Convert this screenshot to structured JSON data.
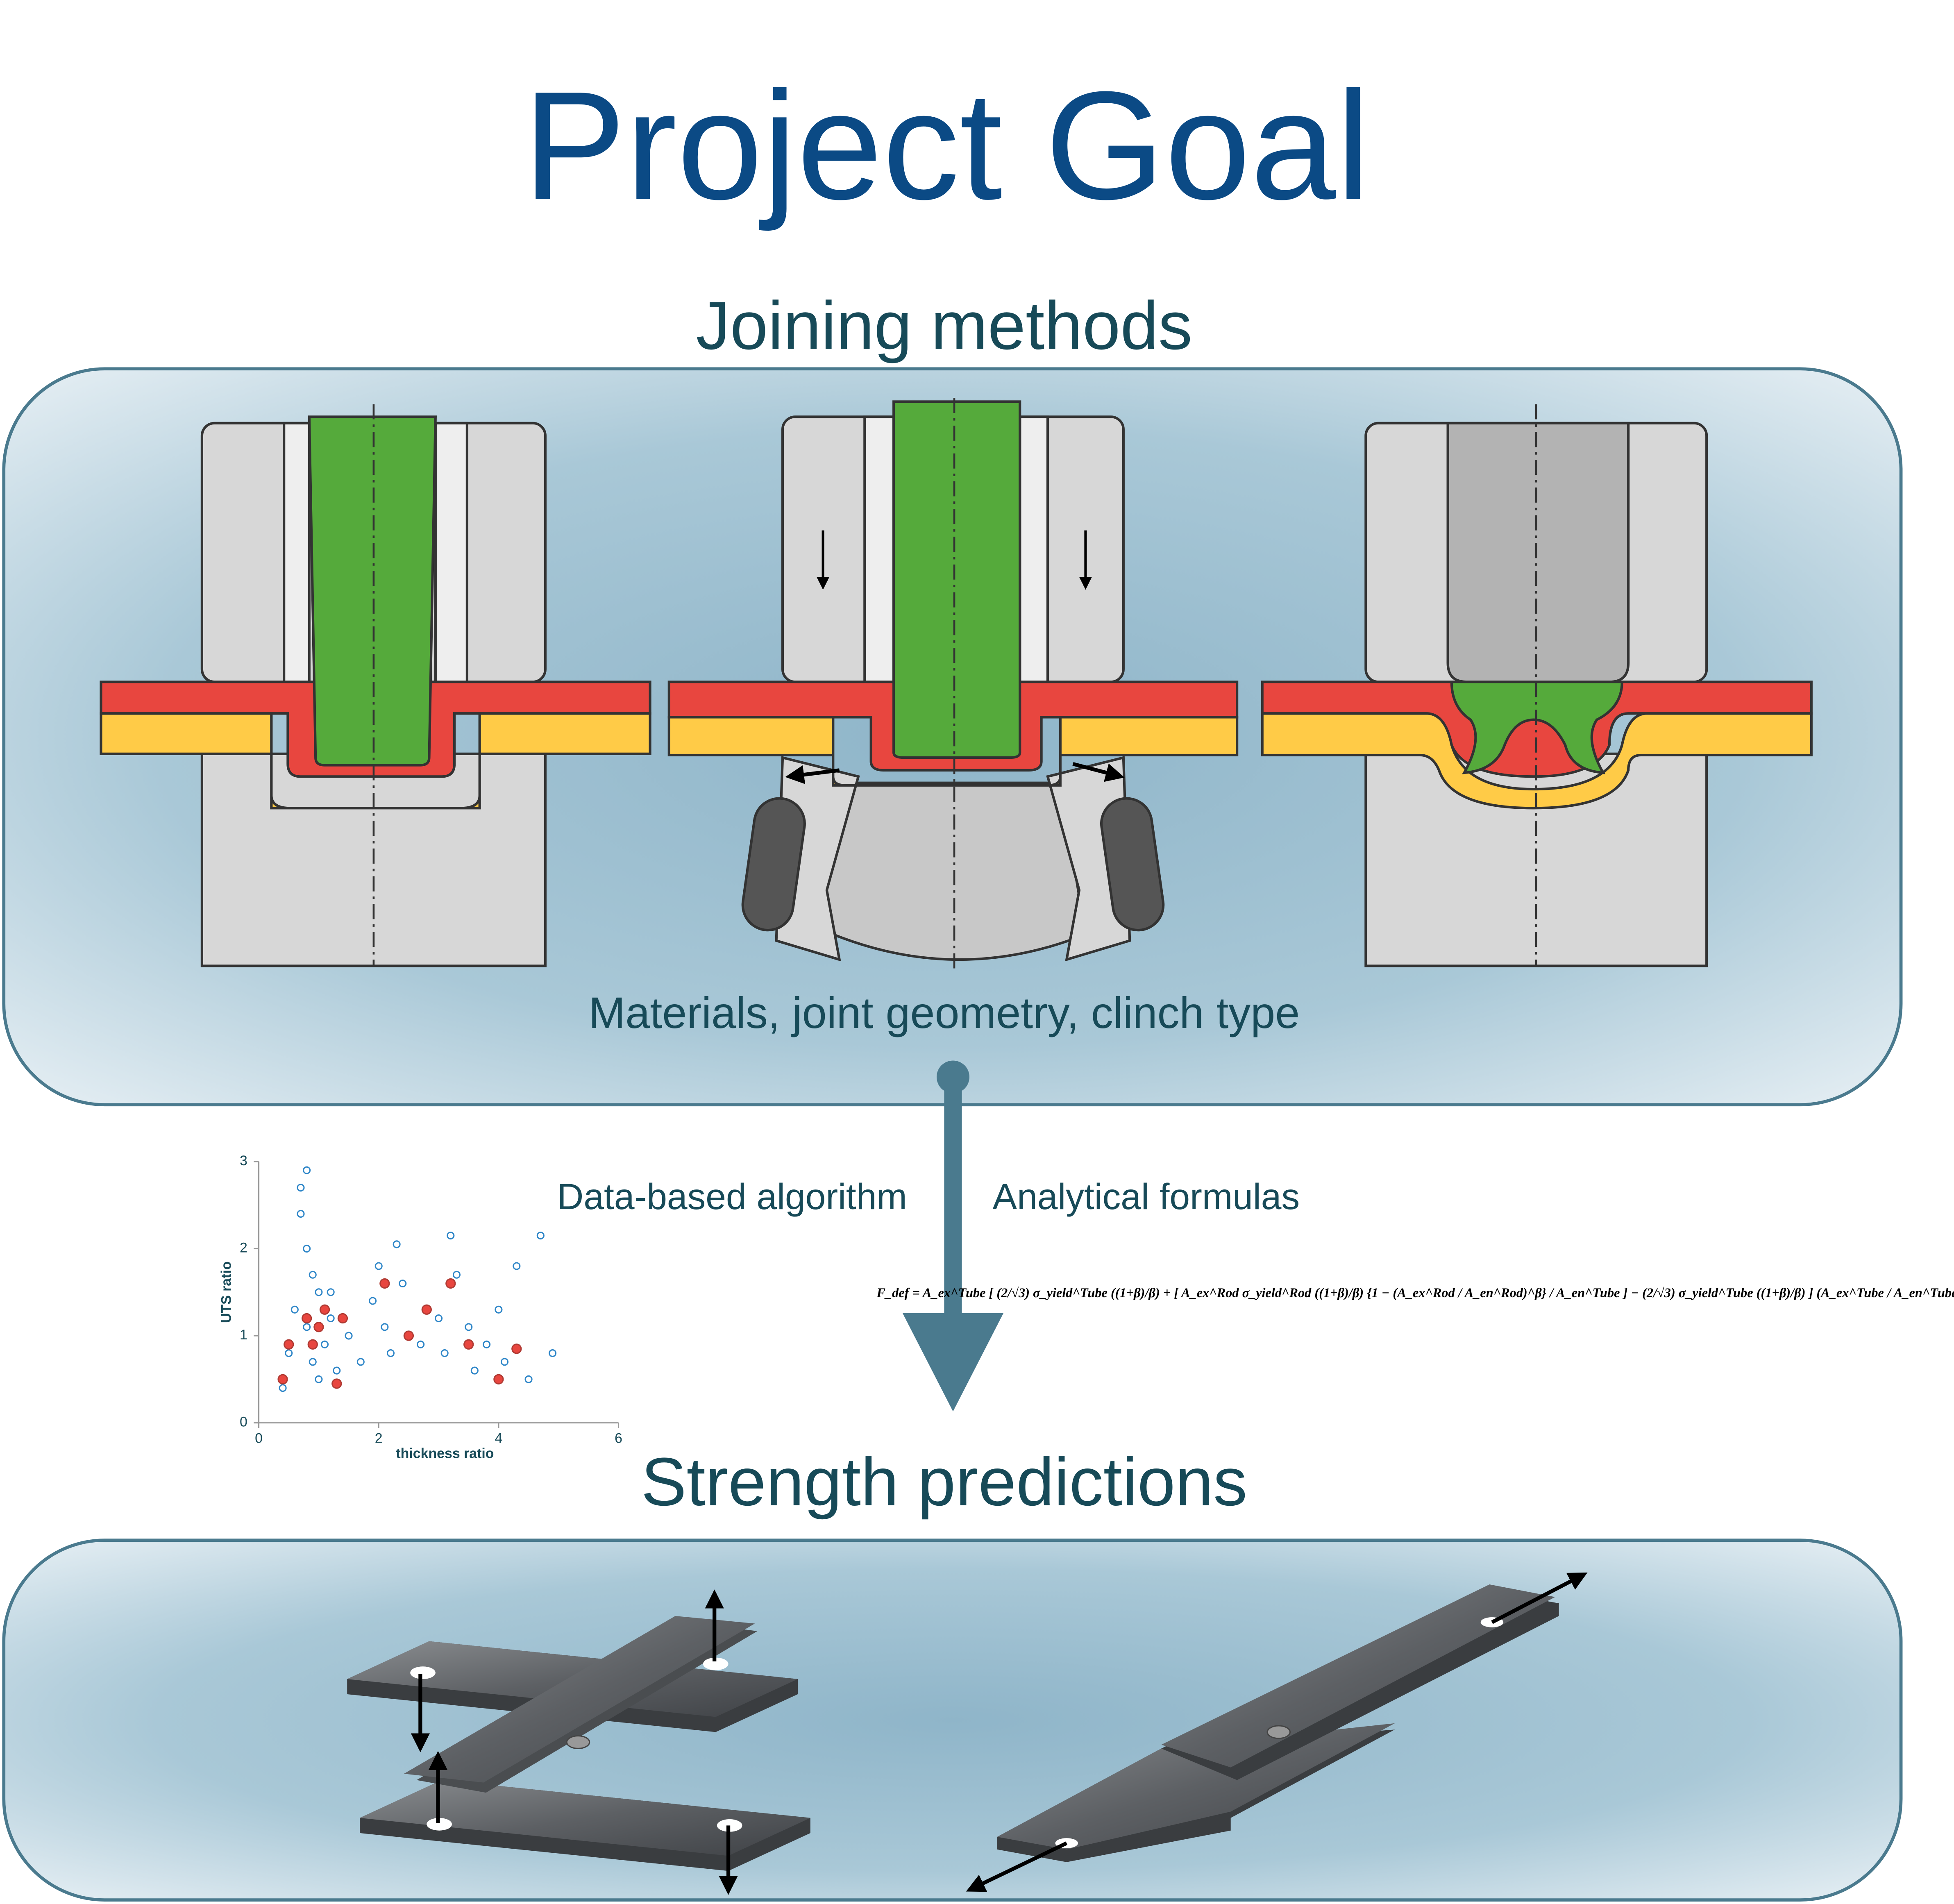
{
  "header": {
    "title": "Project Goal"
  },
  "joining": {
    "title": "Joining methods",
    "caption": "Materials, joint geometry, clinch type"
  },
  "methods": {
    "left": "Data-based algorithm",
    "right": "Analytical formulas"
  },
  "formula": "F_def = A_ex^Tube [ (2/√3) σ_yield^Tube ((1+β)/β) + [ A_ex^Rod σ_yield^Rod ((1+β)/β) {1 − (A_ex^Rod / A_en^Rod)^β} / A_en^Tube ] − (2/√3) σ_yield^Tube ((1+β)/β) ] (A_ex^Tube / A_en^Tube)^β",
  "scatter": {
    "type": "scatter",
    "xlabel": "thickness ratio",
    "ylabel": "UTS ratio",
    "xlim": [
      0,
      6
    ],
    "ylim": [
      0,
      3
    ],
    "xticks": [
      0,
      2,
      4,
      6
    ],
    "yticks": [
      0,
      1,
      2,
      3
    ],
    "series": [
      {
        "color": "#2e86c8",
        "x": [
          0.4,
          0.5,
          0.6,
          0.7,
          0.8,
          0.8,
          0.9,
          1.0,
          1.1,
          1.2,
          1.3,
          1.5,
          1.7,
          1.9,
          2.0,
          2.1,
          2.2,
          2.4,
          2.5,
          2.7,
          2.8,
          3.0,
          3.1,
          3.3,
          3.5,
          3.6,
          3.8,
          4.0,
          4.1,
          4.3,
          4.5,
          4.7,
          4.9,
          0.7,
          0.8,
          0.9,
          1.0,
          1.2,
          2.3,
          3.2
        ],
        "values": [
          0.4,
          0.8,
          1.3,
          2.4,
          2.0,
          1.1,
          0.7,
          1.5,
          0.9,
          1.2,
          0.6,
          1.0,
          0.7,
          1.4,
          1.8,
          1.1,
          0.8,
          1.6,
          1.0,
          0.9,
          1.3,
          1.2,
          0.8,
          1.7,
          1.1,
          0.6,
          0.9,
          1.3,
          0.7,
          1.8,
          0.5,
          2.15,
          0.8,
          2.7,
          2.9,
          1.7,
          0.5,
          1.5,
          2.05,
          2.15
        ]
      },
      {
        "color": "#e8463f",
        "x": [
          0.4,
          0.5,
          0.8,
          0.9,
          1.0,
          1.1,
          1.3,
          1.4,
          2.1,
          2.5,
          2.8,
          3.2,
          3.5,
          4.0,
          4.3
        ],
        "values": [
          0.5,
          0.9,
          1.2,
          0.9,
          1.1,
          1.3,
          0.45,
          1.2,
          1.6,
          1.0,
          1.3,
          1.6,
          0.9,
          0.5,
          0.85
        ]
      }
    ]
  },
  "strength": {
    "title": "Strength predictions"
  }
}
